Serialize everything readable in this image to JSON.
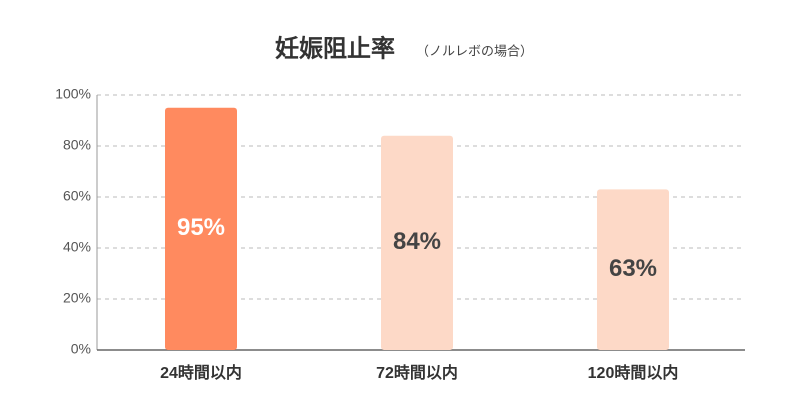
{
  "chart_data": {
    "type": "bar",
    "title": "妊娠阻止率",
    "subtitle": "（ノルレボの場合）",
    "categories": [
      "24時間以内",
      "72時間以内",
      "120時間以内"
    ],
    "values": [
      95,
      84,
      63
    ],
    "value_labels": [
      "95%",
      "84%",
      "63%"
    ],
    "colors": [
      "#ff8a5f",
      "#fdd9c7",
      "#fdd9c7"
    ],
    "label_colors": [
      "#ffffff",
      "#444444",
      "#444444"
    ],
    "ylim": [
      0,
      100
    ],
    "yticks": [
      {
        "value": 0,
        "label": "0%"
      },
      {
        "value": 20,
        "label": "20%"
      },
      {
        "value": 40,
        "label": "40%"
      },
      {
        "value": 60,
        "label": "60%"
      },
      {
        "value": 80,
        "label": "80%"
      },
      {
        "value": 100,
        "label": "100%"
      }
    ],
    "grid": true
  }
}
